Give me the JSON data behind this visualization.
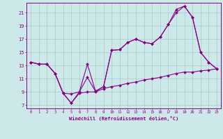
{
  "xlabel": "Windchill (Refroidissement éolien,°C)",
  "bg_color": "#cce8e8",
  "grid_color": "#aacccc",
  "line_color": "#880088",
  "x_ticks": [
    0,
    1,
    2,
    3,
    4,
    5,
    6,
    7,
    8,
    9,
    10,
    11,
    12,
    13,
    14,
    15,
    16,
    17,
    18,
    19,
    20,
    21,
    22,
    23
  ],
  "y_ticks": [
    7,
    9,
    11,
    13,
    15,
    17,
    19,
    21
  ],
  "ylim": [
    6.5,
    22.5
  ],
  "xlim": [
    -0.5,
    23.5
  ],
  "series1_x": [
    0,
    1,
    2,
    3,
    4,
    5,
    6,
    7,
    8,
    9,
    10,
    11,
    12,
    13,
    14,
    15,
    16,
    17,
    18,
    19,
    20,
    21,
    22,
    23
  ],
  "series1_y": [
    13.5,
    13.2,
    13.2,
    11.8,
    8.8,
    7.3,
    9.0,
    11.2,
    9.1,
    9.8,
    15.3,
    15.4,
    16.5,
    17.0,
    16.5,
    16.3,
    17.3,
    19.2,
    21.0,
    22.0,
    20.3,
    15.0,
    13.5,
    12.5
  ],
  "series2_x": [
    0,
    1,
    2,
    3,
    4,
    5,
    6,
    7,
    8,
    9,
    10,
    11,
    12,
    13,
    14,
    15,
    16,
    17,
    18,
    19,
    20,
    21,
    22,
    23
  ],
  "series2_y": [
    13.5,
    13.2,
    13.2,
    11.8,
    8.8,
    8.7,
    9.0,
    13.2,
    9.1,
    9.8,
    15.3,
    15.4,
    16.5,
    17.0,
    16.5,
    16.3,
    17.3,
    19.2,
    21.5,
    22.0,
    20.3,
    15.0,
    13.5,
    12.5
  ],
  "series3_x": [
    0,
    1,
    2,
    3,
    4,
    5,
    6,
    7,
    8,
    9,
    10,
    11,
    12,
    13,
    14,
    15,
    16,
    17,
    18,
    19,
    20,
    21,
    22,
    23
  ],
  "series3_y": [
    13.5,
    13.2,
    13.2,
    11.8,
    8.8,
    7.3,
    8.8,
    9.0,
    9.0,
    9.5,
    9.8,
    10.0,
    10.3,
    10.5,
    10.8,
    11.0,
    11.2,
    11.5,
    11.8,
    12.0,
    12.0,
    12.2,
    12.3,
    12.5
  ]
}
